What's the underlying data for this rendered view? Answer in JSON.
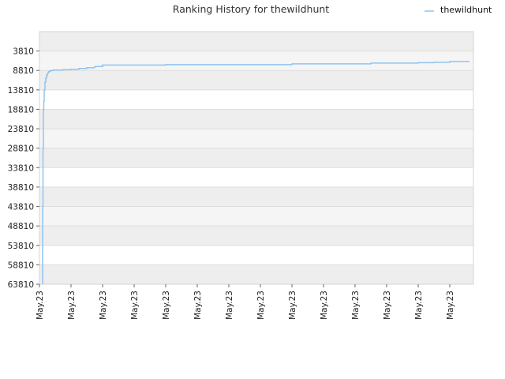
{
  "chart_data": {
    "type": "line",
    "title": "Ranking History for thewildhunt",
    "xlabel": "",
    "ylabel": "",
    "y_inverted": true,
    "ylim": [
      63810,
      -1190
    ],
    "yticks": [
      3810,
      8810,
      13810,
      18810,
      23810,
      28810,
      33810,
      38810,
      43810,
      48810,
      53810,
      58810,
      63810
    ],
    "ytick_labels": [
      "3810",
      "8810",
      "13810",
      "18810",
      "23810",
      "28810",
      "33810",
      "38810",
      "43810",
      "48810",
      "53810",
      "58810",
      "63810"
    ],
    "xlim": [
      0,
      110
    ],
    "xticks": [
      0,
      8,
      16,
      24,
      32,
      40,
      48,
      56,
      64,
      72,
      80,
      88,
      96,
      104
    ],
    "xtick_labels": [
      "May.23",
      "May.23",
      "May.23",
      "May.23",
      "May.23",
      "May.23",
      "May.23",
      "May.23",
      "May.23",
      "May.23",
      "May.23",
      "May.23",
      "May.23",
      "May.23"
    ],
    "grid": true,
    "legend_position": "top-right",
    "series": [
      {
        "name": "thewildhunt",
        "color": "#90c4f0",
        "x": [
          0.8,
          0.8,
          0.9,
          1.0,
          1.1,
          1.2,
          1.4,
          1.6,
          1.8,
          2.0,
          2.3,
          2.6,
          3.0,
          3.5,
          4.5,
          6,
          8,
          10,
          12,
          14,
          16,
          18,
          20,
          24,
          28,
          32,
          36,
          40,
          44,
          48,
          52,
          56,
          60,
          64,
          68,
          72,
          76,
          80,
          84,
          88,
          92,
          96,
          100,
          104,
          108,
          109
        ],
        "y": [
          63810,
          43810,
          28810,
          18810,
          16810,
          13810,
          11810,
          10810,
          10110,
          9510,
          9110,
          8910,
          8810,
          8710,
          8710,
          8610,
          8510,
          8310,
          8110,
          7810,
          7410,
          7410,
          7410,
          7410,
          7410,
          7310,
          7310,
          7310,
          7310,
          7310,
          7310,
          7310,
          7310,
          7110,
          7110,
          7110,
          7110,
          7110,
          6910,
          6910,
          6910,
          6810,
          6710,
          6510,
          6510,
          6510
        ]
      }
    ]
  }
}
